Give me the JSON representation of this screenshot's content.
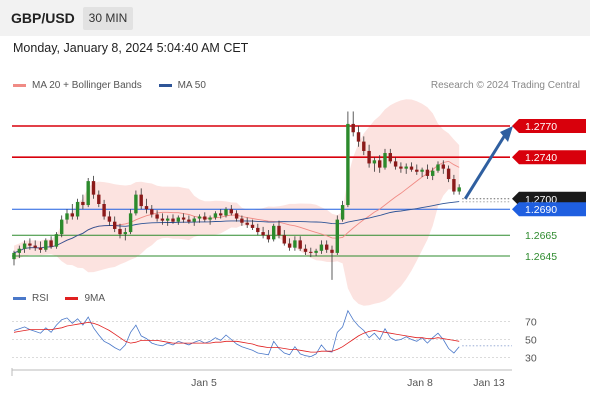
{
  "header": {
    "symbol": "GBP/USD",
    "timeframe": "30 MIN"
  },
  "date_line": "Monday, January 8, 2024 5:04:40 AM CET",
  "legend": [
    {
      "label": "MA 20 + Bollinger Bands",
      "color": "#f08b85"
    },
    {
      "label": "MA 50",
      "color": "#2f5597"
    }
  ],
  "copyright": "Research © 2024 Trading Central",
  "rsi_legend": [
    {
      "label": "RSI",
      "color": "#4a78c9"
    },
    {
      "label": "9MA",
      "color": "#e02020"
    }
  ],
  "chart_data": {
    "type": "candlestick",
    "instrument": "GBP/USD",
    "interval": "30 MIN",
    "price_range": [
      1.262,
      1.2795
    ],
    "levels": [
      {
        "label": "1.2770",
        "value": 1.277,
        "style": "resistance",
        "color": "#d8000c"
      },
      {
        "label": "1.2740",
        "value": 1.274,
        "style": "resistance",
        "color": "#d8000c"
      },
      {
        "label": "1.2700",
        "value": 1.27,
        "style": "current",
        "color": "#1a1a1a"
      },
      {
        "label": "1.2690",
        "value": 1.269,
        "style": "pivot",
        "color": "#1f5fe0"
      },
      {
        "label": "1.2665",
        "value": 1.2665,
        "style": "support",
        "color": "#2e8b2e"
      },
      {
        "label": "1.2645",
        "value": 1.2645,
        "style": "support",
        "color": "#2e8b2e"
      }
    ],
    "candles": [
      [
        1.2642,
        1.265,
        1.2636,
        1.2648
      ],
      [
        1.2648,
        1.2655,
        1.2643,
        1.2652
      ],
      [
        1.2652,
        1.266,
        1.2648,
        1.2657
      ],
      [
        1.2657,
        1.2662,
        1.2651,
        1.2655
      ],
      [
        1.2655,
        1.266,
        1.265,
        1.2653
      ],
      [
        1.2653,
        1.2659,
        1.2648,
        1.2651
      ],
      [
        1.2651,
        1.2662,
        1.2649,
        1.266
      ],
      [
        1.266,
        1.2664,
        1.2652,
        1.2654
      ],
      [
        1.2654,
        1.2668,
        1.2652,
        1.2666
      ],
      [
        1.2666,
        1.2684,
        1.2663,
        1.268
      ],
      [
        1.268,
        1.269,
        1.2676,
        1.2686
      ],
      [
        1.2686,
        1.2695,
        1.268,
        1.2683
      ],
      [
        1.2683,
        1.27,
        1.268,
        1.2697
      ],
      [
        1.2697,
        1.2704,
        1.269,
        1.2694
      ],
      [
        1.2694,
        1.272,
        1.2692,
        1.2717
      ],
      [
        1.2717,
        1.2722,
        1.27,
        1.2704
      ],
      [
        1.2704,
        1.2708,
        1.2692,
        1.2695
      ],
      [
        1.2695,
        1.2699,
        1.268,
        1.2683
      ],
      [
        1.2683,
        1.2688,
        1.2674,
        1.2678
      ],
      [
        1.2678,
        1.2683,
        1.2668,
        1.2671
      ],
      [
        1.2671,
        1.2676,
        1.2662,
        1.2666
      ],
      [
        1.2666,
        1.2672,
        1.266,
        1.2668
      ],
      [
        1.2668,
        1.269,
        1.2666,
        1.2686
      ],
      [
        1.2686,
        1.2708,
        1.2684,
        1.2704
      ],
      [
        1.2704,
        1.271,
        1.269,
        1.2693
      ],
      [
        1.2693,
        1.27,
        1.2686,
        1.269
      ],
      [
        1.269,
        1.2694,
        1.2682,
        1.2685
      ],
      [
        1.2685,
        1.2689,
        1.2678,
        1.2681
      ],
      [
        1.2681,
        1.2686,
        1.2675,
        1.2679
      ],
      [
        1.2679,
        1.2684,
        1.2674,
        1.2681
      ],
      [
        1.2681,
        1.2685,
        1.2676,
        1.2678
      ],
      [
        1.2678,
        1.2684,
        1.2675,
        1.2682
      ],
      [
        1.2682,
        1.2686,
        1.2677,
        1.268
      ],
      [
        1.268,
        1.2684,
        1.2676,
        1.2678
      ],
      [
        1.2678,
        1.2683,
        1.2674,
        1.2681
      ],
      [
        1.2681,
        1.2685,
        1.2677,
        1.2683
      ],
      [
        1.2683,
        1.2687,
        1.2678,
        1.268
      ],
      [
        1.268,
        1.2684,
        1.2675,
        1.2682
      ],
      [
        1.2682,
        1.2688,
        1.268,
        1.2686
      ],
      [
        1.2686,
        1.269,
        1.2681,
        1.2684
      ],
      [
        1.2684,
        1.2692,
        1.2682,
        1.269
      ],
      [
        1.269,
        1.2694,
        1.2684,
        1.2686
      ],
      [
        1.2686,
        1.2689,
        1.2678,
        1.2681
      ],
      [
        1.2681,
        1.2684,
        1.2674,
        1.2677
      ],
      [
        1.2677,
        1.2682,
        1.2672,
        1.2675
      ],
      [
        1.2675,
        1.268,
        1.267,
        1.2672
      ],
      [
        1.2672,
        1.2676,
        1.2665,
        1.2668
      ],
      [
        1.2668,
        1.2673,
        1.2662,
        1.2665
      ],
      [
        1.2665,
        1.267,
        1.2658,
        1.2661
      ],
      [
        1.2661,
        1.2676,
        1.2659,
        1.2674
      ],
      [
        1.2674,
        1.2679,
        1.2662,
        1.2665
      ],
      [
        1.2665,
        1.267,
        1.2655,
        1.2657
      ],
      [
        1.2657,
        1.2662,
        1.265,
        1.2653
      ],
      [
        1.2653,
        1.2664,
        1.265,
        1.266
      ],
      [
        1.266,
        1.2664,
        1.265,
        1.2652
      ],
      [
        1.2652,
        1.2656,
        1.2646,
        1.2649
      ],
      [
        1.2649,
        1.2653,
        1.2644,
        1.2648
      ],
      [
        1.2648,
        1.2652,
        1.2645,
        1.265
      ],
      [
        1.265,
        1.266,
        1.2647,
        1.2656
      ],
      [
        1.2656,
        1.266,
        1.2648,
        1.2651
      ],
      [
        1.2651,
        1.2655,
        1.2622,
        1.2648
      ],
      [
        1.2648,
        1.2684,
        1.2646,
        1.268
      ],
      [
        1.268,
        1.2698,
        1.2678,
        1.2694
      ],
      [
        1.2694,
        1.2784,
        1.2692,
        1.2772
      ],
      [
        1.2772,
        1.2784,
        1.276,
        1.2764
      ],
      [
        1.2764,
        1.277,
        1.275,
        1.2755
      ],
      [
        1.2755,
        1.276,
        1.2742,
        1.2746
      ],
      [
        1.2746,
        1.2752,
        1.273,
        1.2734
      ],
      [
        1.2734,
        1.274,
        1.2726,
        1.2737
      ],
      [
        1.2737,
        1.2742,
        1.2725,
        1.273
      ],
      [
        1.273,
        1.2748,
        1.2728,
        1.2744
      ],
      [
        1.2744,
        1.2748,
        1.2734,
        1.2736
      ],
      [
        1.2736,
        1.274,
        1.2728,
        1.2731
      ],
      [
        1.2731,
        1.2735,
        1.2725,
        1.2729
      ],
      [
        1.2729,
        1.2734,
        1.2724,
        1.2731
      ],
      [
        1.2731,
        1.2735,
        1.2726,
        1.2728
      ],
      [
        1.2728,
        1.2733,
        1.2723,
        1.2726
      ],
      [
        1.2726,
        1.273,
        1.2721,
        1.2728
      ],
      [
        1.2728,
        1.2733,
        1.2719,
        1.2722
      ],
      [
        1.2722,
        1.273,
        1.2718,
        1.2727
      ],
      [
        1.2727,
        1.2736,
        1.2725,
        1.2733
      ],
      [
        1.2733,
        1.2737,
        1.2724,
        1.2729
      ],
      [
        1.2729,
        1.2732,
        1.2716,
        1.2719
      ],
      [
        1.2719,
        1.2723,
        1.2704,
        1.2707
      ],
      [
        1.2707,
        1.2714,
        1.2704,
        1.2711
      ]
    ],
    "projection": {
      "from_value": 1.27,
      "to_value": 1.277
    },
    "rsi": {
      "y_ticks": [
        70,
        50,
        30
      ],
      "rsi_values": [
        60,
        62,
        64,
        61,
        59,
        57,
        63,
        58,
        66,
        72,
        74,
        68,
        73,
        66,
        75,
        63,
        55,
        48,
        45,
        41,
        38,
        44,
        58,
        66,
        54,
        51,
        46,
        44,
        43,
        46,
        44,
        48,
        46,
        44,
        47,
        49,
        46,
        48,
        52,
        49,
        55,
        50,
        45,
        42,
        40,
        38,
        35,
        34,
        33,
        48,
        40,
        35,
        33,
        42,
        34,
        32,
        31,
        34,
        44,
        37,
        36,
        58,
        64,
        82,
        72,
        65,
        60,
        52,
        57,
        50,
        62,
        52,
        49,
        50,
        53,
        50,
        48,
        52,
        46,
        52,
        57,
        50,
        40,
        35,
        42
      ],
      "ma_values": [
        58,
        59,
        60,
        61,
        61,
        61,
        61,
        61,
        62,
        63,
        65,
        66,
        67,
        68,
        69,
        68,
        66,
        63,
        60,
        56,
        52,
        48,
        46,
        47,
        49,
        49,
        49,
        49,
        48,
        47,
        46,
        46,
        46,
        46,
        46,
        46,
        46,
        46,
        47,
        47,
        48,
        48,
        48,
        47,
        46,
        45,
        43,
        42,
        41,
        41,
        41,
        40,
        39,
        39,
        38,
        37,
        36,
        36,
        37,
        37,
        37,
        39,
        42,
        46,
        50,
        54,
        57,
        59,
        60,
        59,
        58,
        57,
        56,
        55,
        54,
        53,
        52,
        52,
        51,
        51,
        52,
        51,
        50,
        49,
        48
      ]
    },
    "x_labels": [
      {
        "label": "Jan 5",
        "index": 26
      },
      {
        "label": "Jan 8",
        "index": 58
      },
      {
        "label": "Jan 13",
        "index": 68
      }
    ]
  }
}
